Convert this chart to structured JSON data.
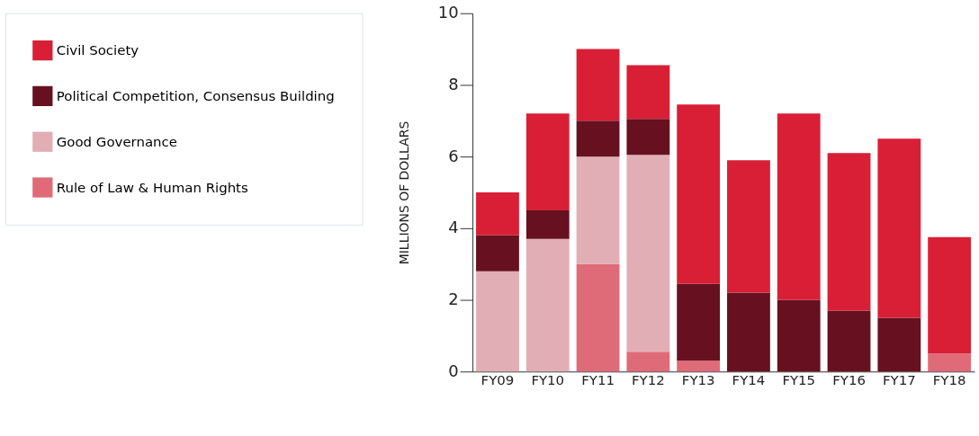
{
  "chart_data": {
    "type": "bar",
    "stacked": true,
    "ylabel": "MILLIONS OF DOLLARS",
    "categories": [
      "FY09",
      "FY10",
      "FY11",
      "FY12",
      "FY13",
      "FY14",
      "FY15",
      "FY16",
      "FY17",
      "FY18"
    ],
    "series": [
      {
        "name": "Rule of Law & Human Rights",
        "color": "#e06b78",
        "values": [
          0,
          0,
          3.0,
          0.55,
          0.3,
          0,
          0,
          0,
          0,
          0.5
        ]
      },
      {
        "name": "Good Governance",
        "color": "#e2aeb5",
        "values": [
          2.8,
          3.7,
          3.0,
          5.5,
          0,
          0,
          0,
          0,
          0,
          0
        ]
      },
      {
        "name": "Political Competition, Consensus Building",
        "color": "#671120",
        "values": [
          1.0,
          0.8,
          1.0,
          1.0,
          2.15,
          2.2,
          2.0,
          1.7,
          1.5,
          null
        ]
      },
      {
        "name": "Civil Society",
        "color": "#d91f36",
        "values": [
          1.2,
          2.7,
          2.0,
          1.5,
          5.0,
          3.7,
          5.2,
          4.4,
          5.0,
          3.25
        ]
      }
    ],
    "ylim": [
      0,
      10
    ],
    "yticks": [
      0,
      2,
      4,
      6,
      8,
      10
    ],
    "grid": false,
    "legend": "left"
  }
}
